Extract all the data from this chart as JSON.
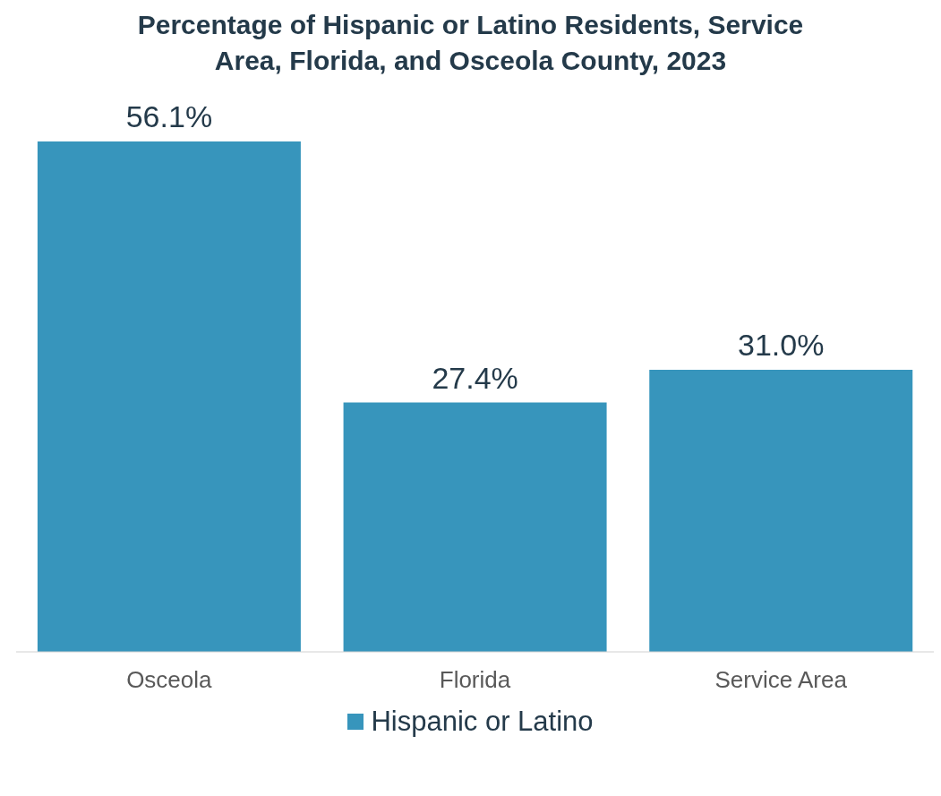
{
  "chart_data": {
    "type": "bar",
    "title": "Percentage of Hispanic or Latino Residents, Service Area, Florida, and Osceola County, 2023",
    "categories": [
      "Osceola",
      "Florida",
      "Service Area"
    ],
    "series": [
      {
        "name": "Hispanic or Latino",
        "color": "#3795bc",
        "values": [
          56.1,
          27.4,
          31.0
        ],
        "value_labels": [
          "56.1%",
          "27.4%",
          "31.0%"
        ]
      }
    ],
    "tick_labels": "x",
    "legend": "bottom"
  }
}
